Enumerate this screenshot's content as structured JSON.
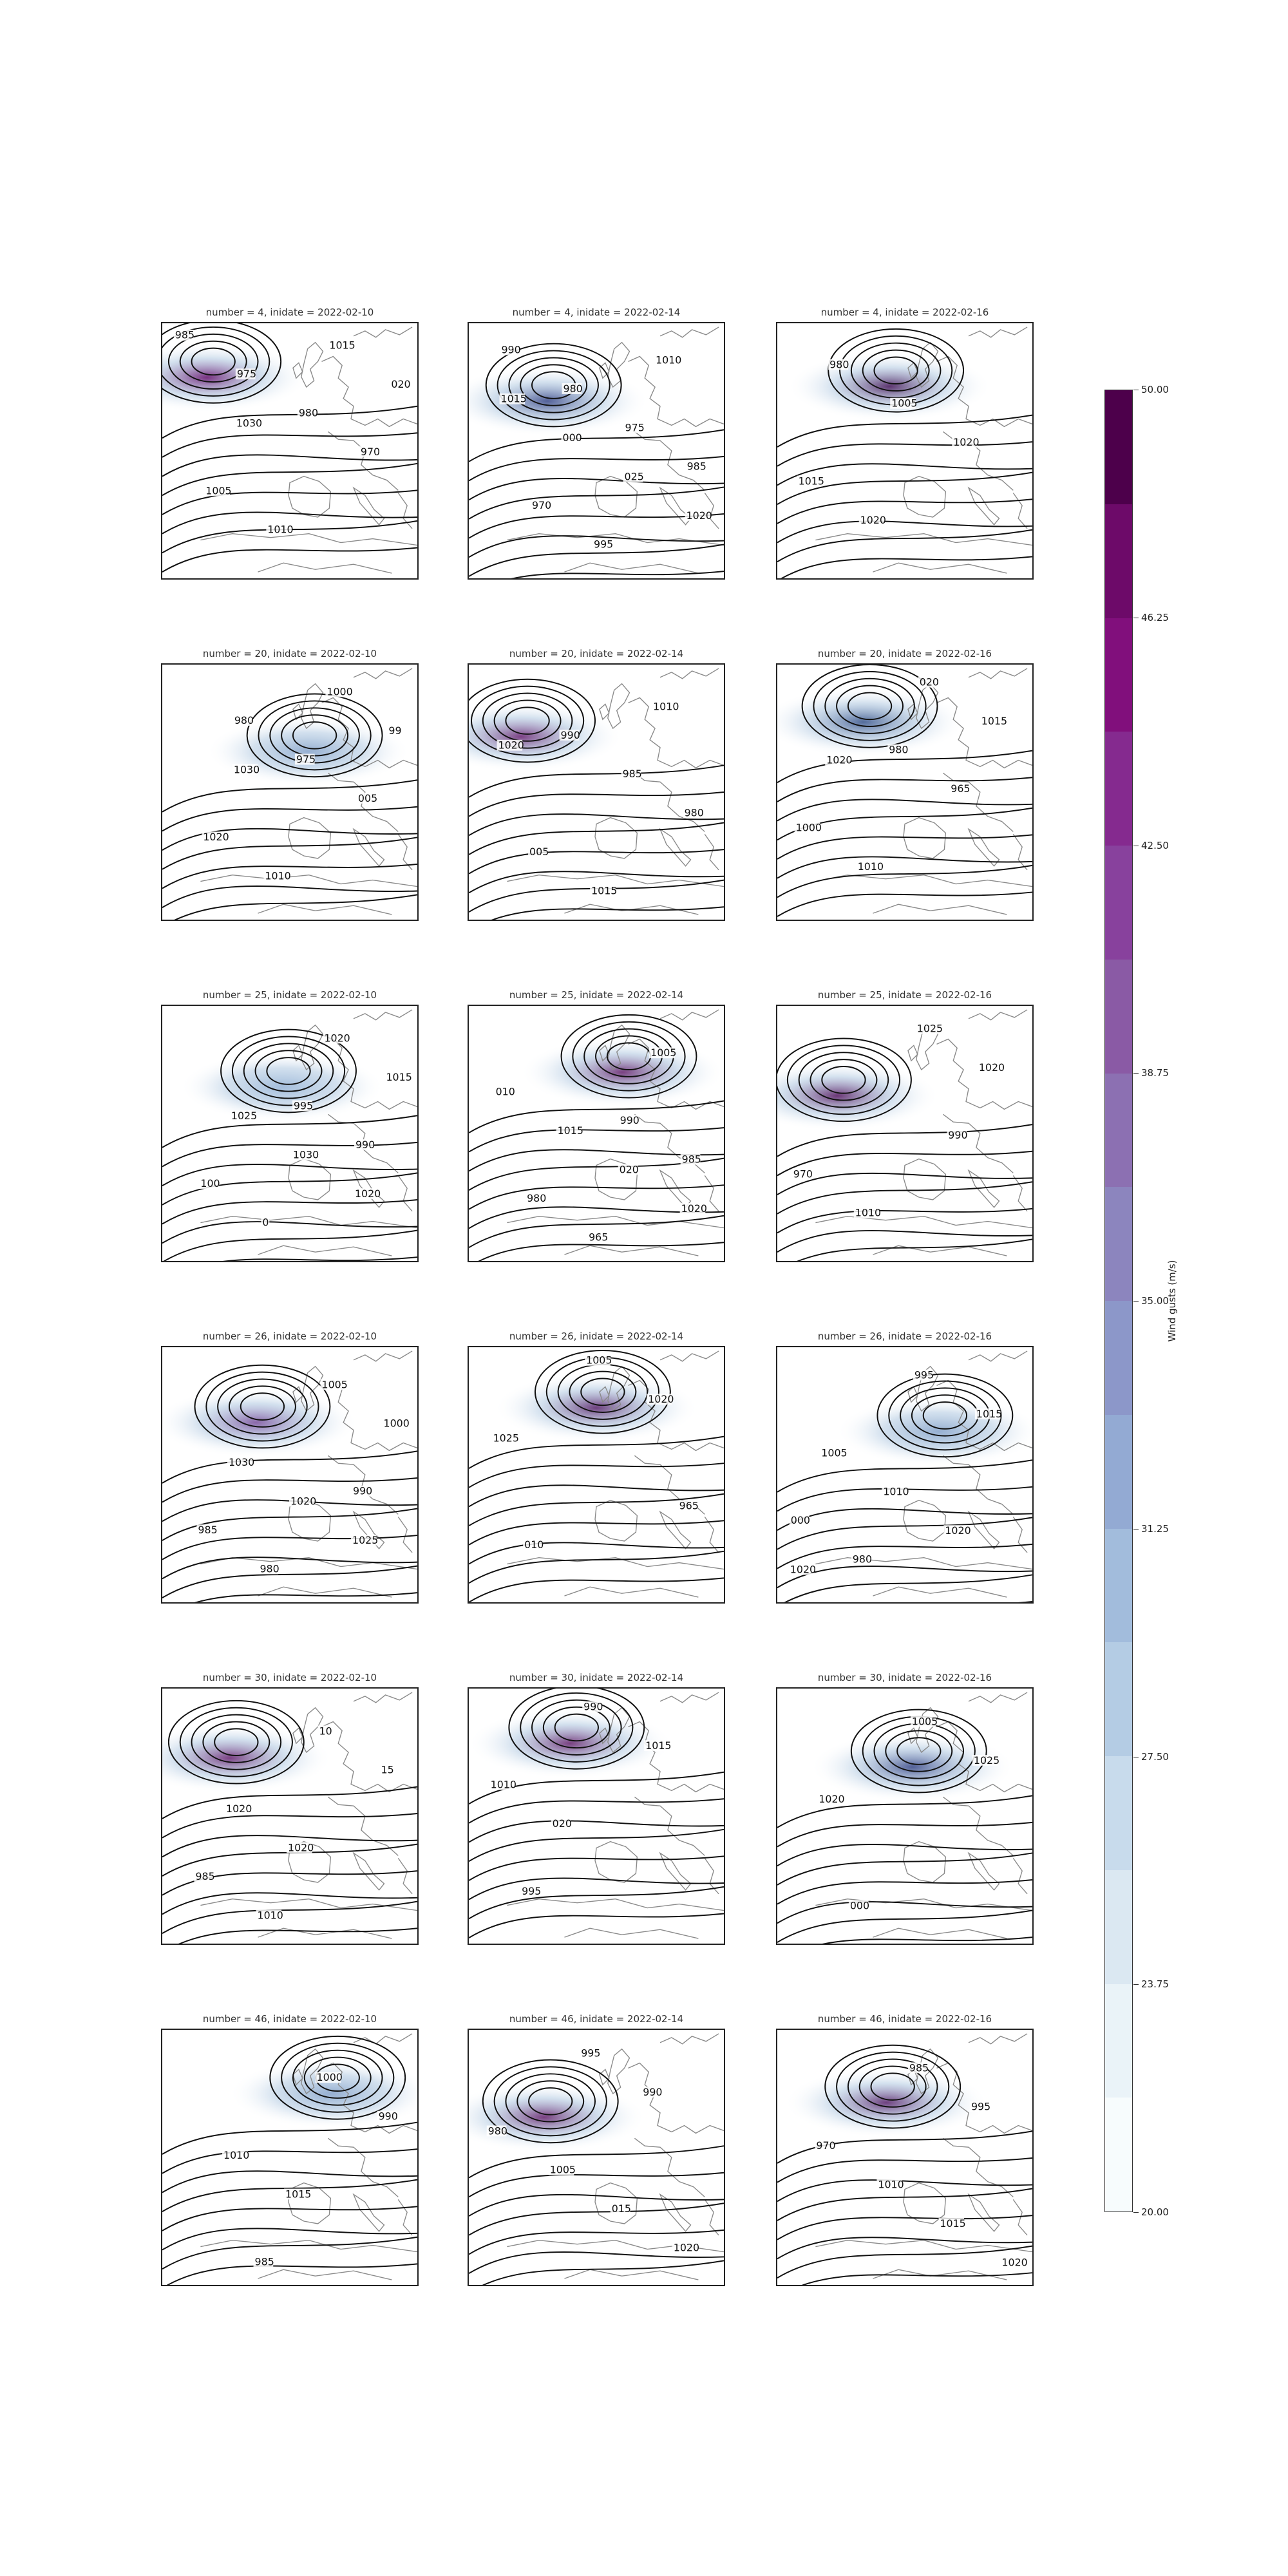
{
  "panels": [
    {
      "title": "number = 4, inidate = 2022-02-10",
      "gust": "#6a1a73",
      "labels": [
        "985",
        "975",
        "980",
        "970",
        "1005",
        "1010",
        "1015",
        "020",
        "1030"
      ]
    },
    {
      "title": "number = 4, inidate = 2022-02-14",
      "gust": "#3f4e8c",
      "labels": [
        "990",
        "980",
        "975",
        "985",
        "970",
        "995",
        "1010",
        "1015",
        "000",
        "025",
        "1020"
      ]
    },
    {
      "title": "number = 4, inidate = 2022-02-16",
      "gust": "#4a1d5e",
      "labels": [
        "980",
        "1005",
        "1020",
        "1015",
        "1020"
      ]
    },
    {
      "title": "number = 20, inidate = 2022-02-10",
      "gust": "#8aa6cc",
      "labels": [
        "980",
        "975",
        "005",
        "1020",
        "1010",
        "1000",
        "99",
        "1030"
      ]
    },
    {
      "title": "number = 20, inidate = 2022-02-14",
      "gust": "#6d2b76",
      "labels": [
        "990",
        "985",
        "980",
        "005",
        "1015",
        "1010",
        "1020"
      ]
    },
    {
      "title": "number = 20, inidate = 2022-02-16",
      "gust": "#3f5a8f",
      "labels": [
        "980",
        "965",
        "1000",
        "1010",
        "020",
        "1015",
        "1020"
      ]
    },
    {
      "title": "number = 25, inidate = 2022-02-10",
      "gust": "#9ab6d8",
      "labels": [
        "995",
        "990",
        "100",
        "0",
        "1020",
        "1015",
        "1025",
        "1030",
        "1020"
      ]
    },
    {
      "title": "number = 25, inidate = 2022-02-14",
      "gust": "#6a2a72",
      "labels": [
        "990",
        "985",
        "980",
        "965",
        "1005",
        "010",
        "1015",
        "020",
        "1020"
      ]
    },
    {
      "title": "number = 25, inidate = 2022-02-16",
      "gust": "#5a1f66",
      "labels": [
        "990",
        "970",
        "1010",
        "1025",
        "1020"
      ]
    },
    {
      "title": "number = 26, inidate = 2022-02-10",
      "gust": "#7e56a0",
      "labels": [
        "990",
        "985",
        "980",
        "1005",
        "1000",
        "1030",
        "1020",
        "1025"
      ]
    },
    {
      "title": "number = 26, inidate = 2022-02-14",
      "gust": "#5e2a70",
      "labels": [
        "965",
        "010",
        "1005",
        "1020",
        "1025"
      ]
    },
    {
      "title": "number = 26, inidate = 2022-02-16",
      "gust": "#8aa6cc",
      "labels": [
        "000",
        "980",
        "995",
        "1015",
        "1005",
        "1010",
        "1020",
        "1020"
      ]
    },
    {
      "title": "number = 30, inidate = 2022-02-10",
      "gust": "#6d2b76",
      "labels": [
        "985",
        "1010",
        "10",
        "15",
        "1020",
        "1020"
      ]
    },
    {
      "title": "number = 30, inidate = 2022-02-14",
      "gust": "#6a2a72",
      "labels": [
        "995",
        "990",
        "1015",
        "1010",
        "020"
      ]
    },
    {
      "title": "number = 30, inidate = 2022-02-16",
      "gust": "#3f4e8c",
      "labels": [
        "000",
        "1005",
        "1025",
        "1020"
      ]
    },
    {
      "title": "number = 46, inidate = 2022-02-10",
      "gust": "#8aa6cc",
      "labels": [
        "985",
        "1000",
        "990",
        "1010",
        "1015"
      ]
    },
    {
      "title": "number = 46, inidate = 2022-02-14",
      "gust": "#6a2a72",
      "labels": [
        "995",
        "990",
        "980",
        "1005",
        "015",
        "1020"
      ]
    },
    {
      "title": "number = 46, inidate = 2022-02-16",
      "gust": "#5e2a70",
      "labels": [
        "985",
        "995",
        "970",
        "1010",
        "1015",
        "1020"
      ]
    }
  ],
  "colorbar": {
    "label": "Wind gusts (m/s)",
    "min": 20.0,
    "max": 50.0,
    "ticks": [
      "50.00",
      "46.25",
      "42.50",
      "38.75",
      "35.00",
      "31.25",
      "27.50",
      "23.75",
      "20.00"
    ],
    "tick_values": [
      50.0,
      46.25,
      42.5,
      38.75,
      35.0,
      31.25,
      27.5,
      23.75,
      20.0
    ],
    "levels": [
      {
        "from": 20.0,
        "color": "#f7fcfd"
      },
      {
        "from": 21.875,
        "color": "#eaf3f8"
      },
      {
        "from": 23.75,
        "color": "#dbe8f2"
      },
      {
        "from": 25.625,
        "color": "#c8dbec"
      },
      {
        "from": 27.5,
        "color": "#b4cce4"
      },
      {
        "from": 29.375,
        "color": "#a2bcdc"
      },
      {
        "from": 31.25,
        "color": "#93aad3"
      },
      {
        "from": 33.125,
        "color": "#8c97c9"
      },
      {
        "from": 35.0,
        "color": "#8c85be"
      },
      {
        "from": 36.875,
        "color": "#8c70b2"
      },
      {
        "from": 38.75,
        "color": "#8a5aa5"
      },
      {
        "from": 40.625,
        "color": "#88419d"
      },
      {
        "from": 42.5,
        "color": "#852a8f"
      },
      {
        "from": 44.375,
        "color": "#810f7c"
      },
      {
        "from": 46.25,
        "color": "#6d0a69"
      },
      {
        "from": 48.125,
        "color": "#4d004b"
      }
    ]
  }
}
